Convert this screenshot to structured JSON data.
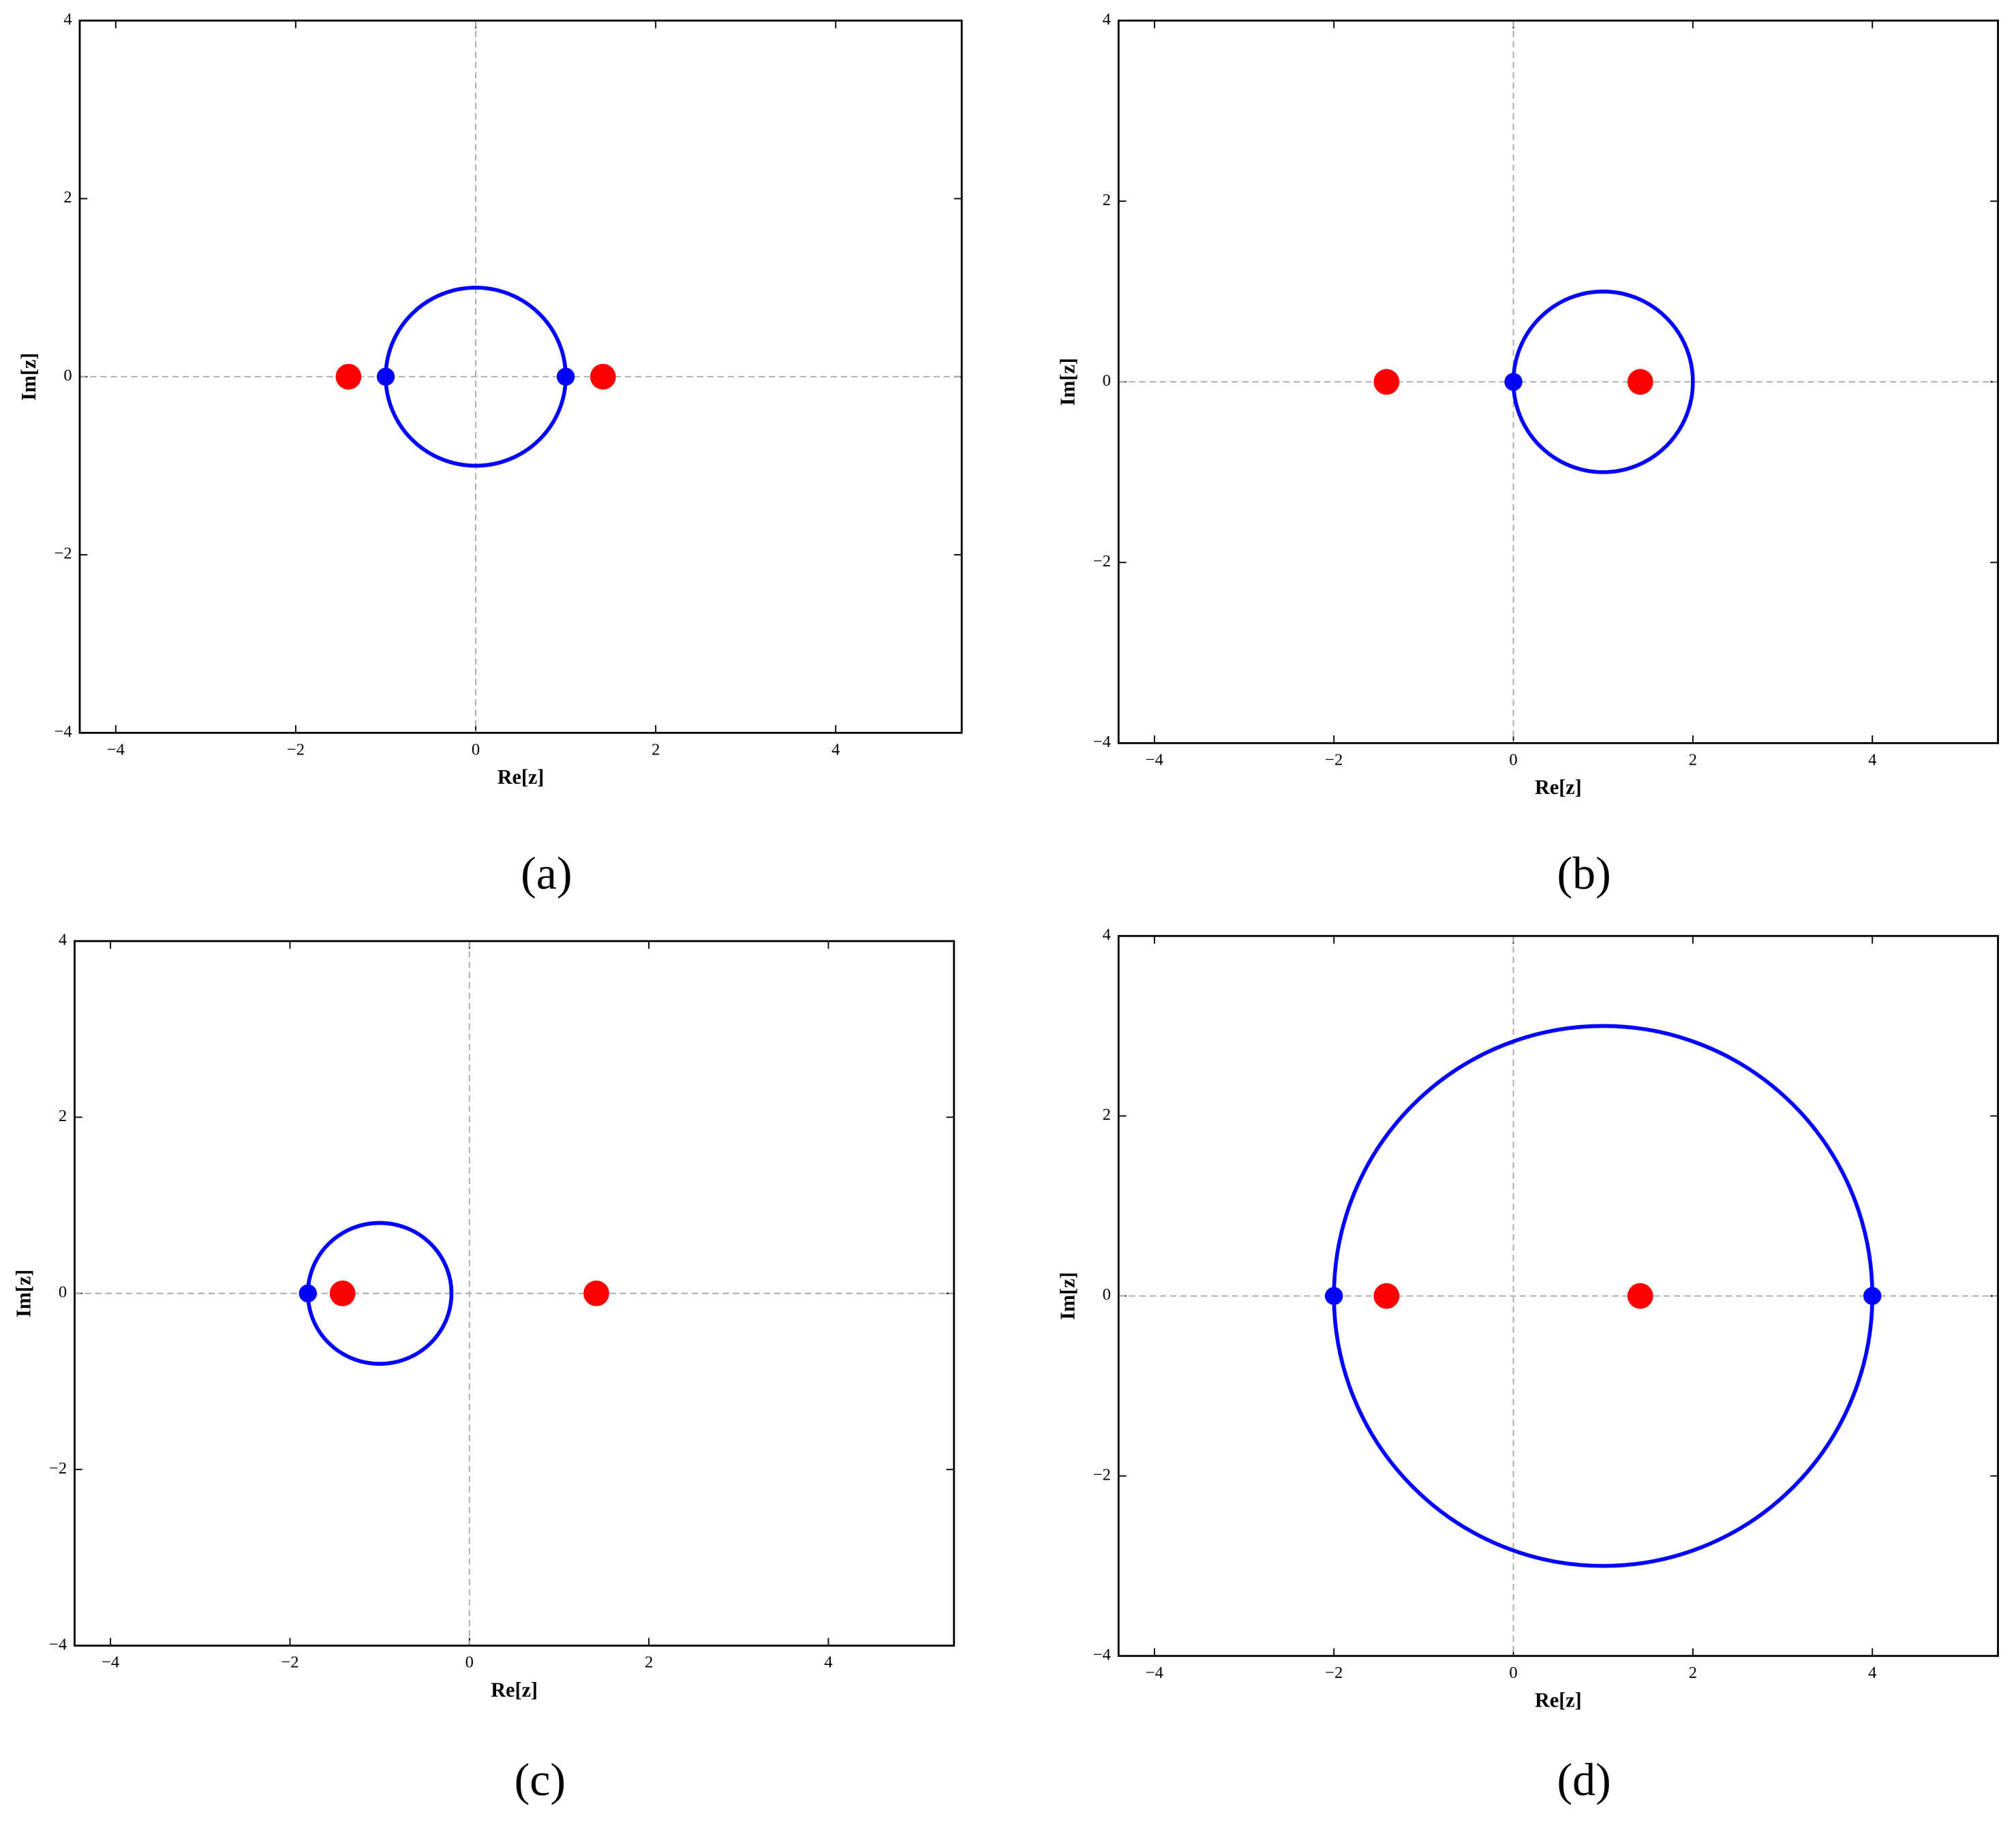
{
  "chart_data": [
    {
      "type": "scatter",
      "caption": "(a)",
      "xlabel": "Re[z]",
      "ylabel": "Im[z]",
      "xlim": [
        -4.4,
        5.4
      ],
      "ylim": [
        -4,
        4
      ],
      "xticks": [
        {
          "value": -4,
          "label": "−4"
        },
        {
          "value": -2,
          "label": "−2"
        },
        0,
        2,
        4
      ],
      "yticks": [
        {
          "value": -4,
          "label": "−4"
        },
        {
          "value": -2,
          "label": "−2"
        },
        0,
        2,
        4
      ],
      "zero_lines": true,
      "circle": {
        "center_x": 0,
        "center_y": 0,
        "radius": 1,
        "color": "#0000ff"
      },
      "series": [
        {
          "color": "#ff0000",
          "x": [
            -1.414,
            1.414
          ],
          "y": [
            0,
            0
          ]
        },
        {
          "color": "#0000ff",
          "x": [
            -1,
            1
          ],
          "y": [
            0,
            0
          ]
        }
      ]
    },
    {
      "type": "scatter",
      "caption": "(b)",
      "xlabel": "Re[z]",
      "ylabel": "Im[z]",
      "xlim": [
        -4.4,
        5.4
      ],
      "ylim": [
        -4,
        4
      ],
      "xticks": [
        {
          "value": -4,
          "label": "−4"
        },
        {
          "value": -2,
          "label": "−2"
        },
        0,
        2,
        4
      ],
      "yticks": [
        {
          "value": -4,
          "label": "−4"
        },
        {
          "value": -2,
          "label": "−2"
        },
        0,
        2,
        4
      ],
      "zero_lines": true,
      "circle": {
        "center_x": 1,
        "center_y": 0,
        "radius": 1,
        "color": "#0000ff"
      },
      "series": [
        {
          "color": "#ff0000",
          "x": [
            -1.414,
            1.414
          ],
          "y": [
            0,
            0
          ]
        },
        {
          "color": "#0000ff",
          "x": [
            0
          ],
          "y": [
            0
          ]
        }
      ]
    },
    {
      "type": "scatter",
      "caption": "(c)",
      "xlabel": "Re[z]",
      "ylabel": "Im[z]",
      "xlim": [
        -4.4,
        5.4
      ],
      "ylim": [
        -4,
        4
      ],
      "xticks": [
        {
          "value": -4,
          "label": "−4"
        },
        {
          "value": -2,
          "label": "−2"
        },
        0,
        2,
        4
      ],
      "yticks": [
        {
          "value": -4,
          "label": "−4"
        },
        {
          "value": -2,
          "label": "−2"
        },
        0,
        2,
        4
      ],
      "zero_lines": true,
      "circle": {
        "center_x": -1,
        "center_y": 0,
        "radius": 0.8,
        "color": "#0000ff"
      },
      "series": [
        {
          "color": "#ff0000",
          "x": [
            -1.414,
            1.414
          ],
          "y": [
            0,
            0
          ]
        },
        {
          "color": "#0000ff",
          "x": [
            -1.8
          ],
          "y": [
            0
          ]
        }
      ]
    },
    {
      "type": "scatter",
      "caption": "(d)",
      "xlabel": "Re[z]",
      "ylabel": "Im[z]",
      "xlim": [
        -4.4,
        5.4
      ],
      "ylim": [
        -4,
        4
      ],
      "xticks": [
        {
          "value": -4,
          "label": "−4"
        },
        {
          "value": -2,
          "label": "−2"
        },
        0,
        2,
        4
      ],
      "yticks": [
        {
          "value": -4,
          "label": "−4"
        },
        {
          "value": -2,
          "label": "−2"
        },
        0,
        2,
        4
      ],
      "zero_lines": true,
      "circle": {
        "center_x": 1,
        "center_y": 0,
        "radius": 3,
        "color": "#0000ff"
      },
      "series": [
        {
          "color": "#ff0000",
          "x": [
            -1.414,
            1.414
          ],
          "y": [
            0,
            0
          ]
        },
        {
          "color": "#0000ff",
          "x": [
            -2,
            4
          ],
          "y": [
            0,
            0
          ]
        }
      ]
    }
  ]
}
